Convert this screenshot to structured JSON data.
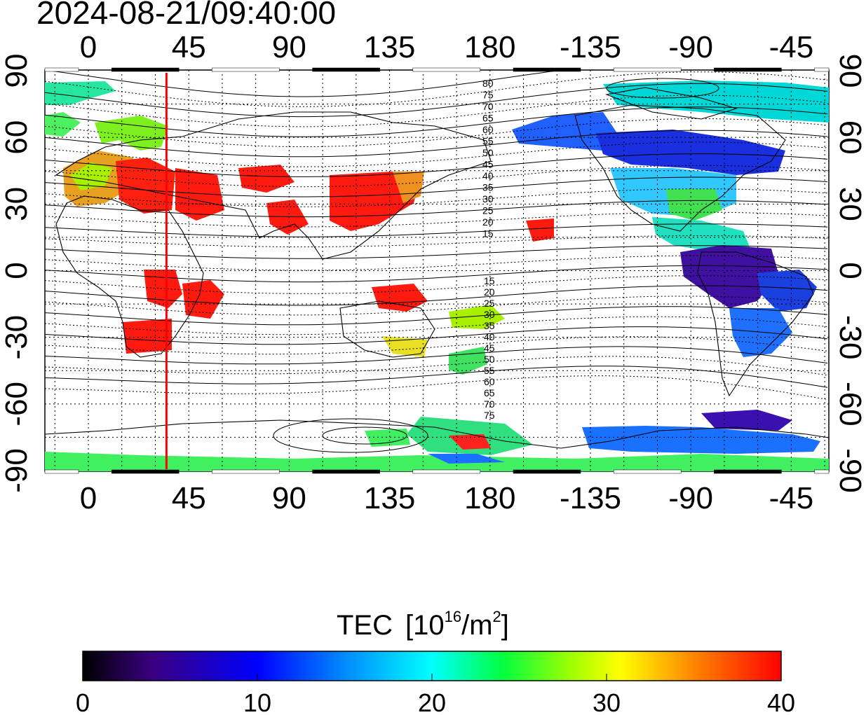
{
  "timestamp": "2024-08-21/09:40:00",
  "map": {
    "x_ticks": [
      "0",
      "45",
      "90",
      "135",
      "180",
      "-135",
      "-90",
      "-45"
    ],
    "y_ticks_left": [
      "90",
      "60",
      "30",
      "0",
      "-30",
      "-60",
      "-90"
    ],
    "y_ticks_right": [
      "90",
      "60",
      "30",
      "0",
      "-30",
      "-60",
      "-90"
    ],
    "contour_labels_north": [
      "80",
      "75",
      "70",
      "65",
      "60",
      "55",
      "50",
      "45",
      "40",
      "35",
      "30",
      "25",
      "20",
      "15"
    ],
    "contour_labels_south": [
      "15",
      "20",
      "25",
      "30",
      "35",
      "40",
      "45",
      "50",
      "55",
      "60",
      "65",
      "70",
      "75"
    ],
    "marker_line_longitude": 35,
    "marker_line_color": "#ff0000"
  },
  "colorbar": {
    "title": "TEC",
    "unit_base": "[10",
    "unit_exp": "16",
    "unit_mid": "/m",
    "unit_exp2": "2",
    "unit_end": "]",
    "tick_labels": [
      "0",
      "10",
      "20",
      "30",
      "40"
    ],
    "min": 0,
    "max": 40,
    "colors": [
      "#000000",
      "#3a0080",
      "#0000ff",
      "#0090ff",
      "#00ffff",
      "#00ff40",
      "#a0ff00",
      "#ffff00",
      "#ff8000",
      "#ff0000"
    ]
  }
}
